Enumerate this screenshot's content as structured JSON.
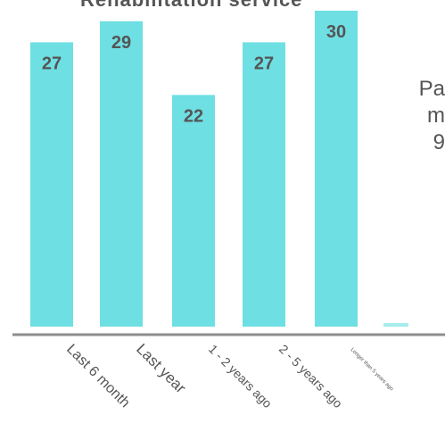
{
  "chart_title": "Rehabilitation service",
  "side_text": "Pa\nm\n9\n",
  "colors": {
    "bar": "#6edfe3",
    "axis": "#8c8c8c",
    "label": "#555555"
  },
  "chart_data": {
    "type": "bar",
    "title": "Rehabilitation service",
    "categories": [
      "Last 6 month",
      "Last year",
      "1 - 2 years ago",
      "2 - 5 years ago",
      "Longer than 5 years ago"
    ],
    "values": [
      27,
      29,
      22,
      27,
      30
    ],
    "xlabel": "",
    "ylabel": "",
    "ylim": [
      0,
      31
    ],
    "grid": false,
    "legend": "none"
  }
}
